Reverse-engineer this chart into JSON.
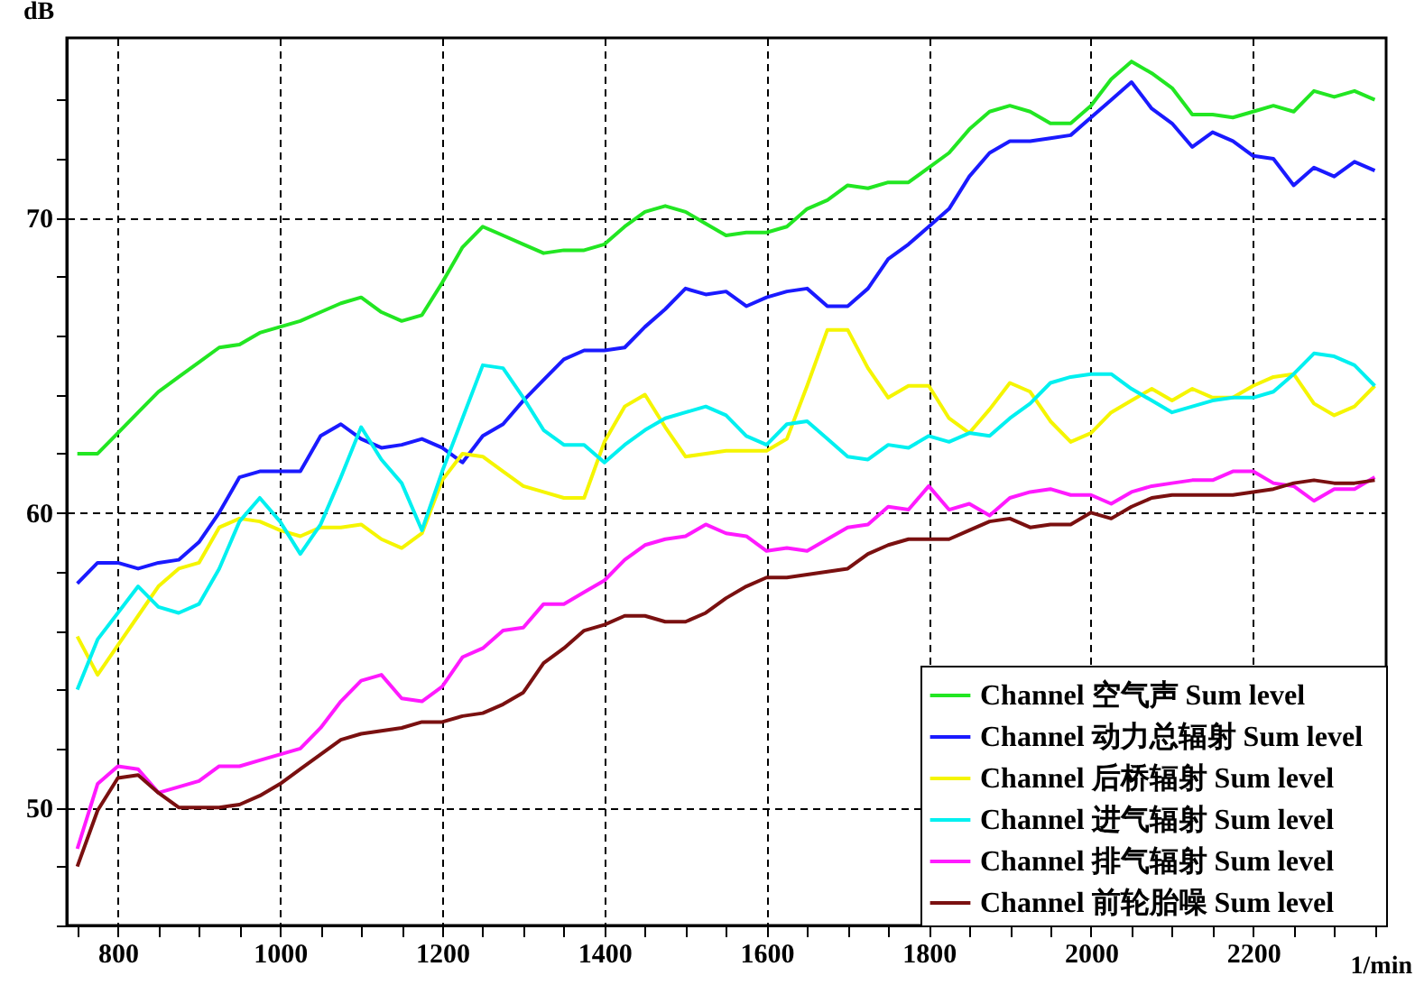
{
  "chart_data": {
    "type": "line",
    "xlabel": "1/min",
    "ylabel": "dB",
    "x": [
      750,
      775,
      800,
      825,
      850,
      875,
      900,
      925,
      950,
      975,
      1000,
      1025,
      1050,
      1075,
      1100,
      1125,
      1150,
      1175,
      1200,
      1225,
      1250,
      1275,
      1300,
      1325,
      1350,
      1375,
      1400,
      1425,
      1450,
      1475,
      1500,
      1525,
      1550,
      1575,
      1600,
      1625,
      1650,
      1675,
      1700,
      1725,
      1750,
      1775,
      1800,
      1825,
      1850,
      1875,
      1900,
      1925,
      1950,
      1975,
      2000,
      2025,
      2050,
      2075,
      2100,
      2125,
      2150,
      2175,
      2200,
      2225,
      2250,
      2275,
      2300,
      2325,
      2350
    ],
    "series": [
      {
        "name": "Channel  空气声  Sum level",
        "color": "#22e622",
        "values": [
          62.0,
          62.0,
          62.7,
          63.4,
          64.1,
          64.6,
          65.1,
          65.6,
          65.7,
          66.1,
          66.3,
          66.5,
          66.8,
          67.1,
          67.3,
          66.8,
          66.5,
          66.7,
          67.8,
          69.0,
          69.7,
          69.4,
          69.1,
          68.8,
          68.9,
          68.9,
          69.1,
          69.7,
          70.2,
          70.4,
          70.2,
          69.8,
          69.4,
          69.5,
          69.5,
          69.7,
          70.3,
          70.6,
          71.1,
          71.0,
          71.2,
          71.2,
          71.7,
          72.2,
          73.0,
          73.6,
          73.8,
          73.6,
          73.2,
          73.2,
          73.8,
          74.7,
          75.3,
          74.9,
          74.4,
          73.5,
          73.5,
          73.4,
          73.6,
          73.8,
          73.6,
          74.3,
          74.1,
          74.3,
          74.0
        ]
      },
      {
        "name": "Channel  动力总辐射  Sum level",
        "color": "#1a1aff",
        "values": [
          57.6,
          58.3,
          58.3,
          58.1,
          58.3,
          58.4,
          59.0,
          60.0,
          61.2,
          61.4,
          61.4,
          61.4,
          62.6,
          63.0,
          62.5,
          62.2,
          62.3,
          62.5,
          62.2,
          61.7,
          62.6,
          63.0,
          63.8,
          64.5,
          65.2,
          65.5,
          65.5,
          65.6,
          66.3,
          66.9,
          67.6,
          67.4,
          67.5,
          67.0,
          67.3,
          67.5,
          67.6,
          67.0,
          67.0,
          67.6,
          68.6,
          69.1,
          69.7,
          70.3,
          71.4,
          72.2,
          72.6,
          72.6,
          72.7,
          72.8,
          73.4,
          74.0,
          74.6,
          73.7,
          73.2,
          72.4,
          72.9,
          72.6,
          72.1,
          72.0,
          71.1,
          71.7,
          71.4,
          71.9,
          71.6
        ]
      },
      {
        "name": "Channel  后桥辐射  Sum level",
        "color": "#f5f500",
        "values": [
          55.8,
          54.5,
          55.5,
          56.5,
          57.5,
          58.1,
          58.3,
          59.5,
          59.8,
          59.7,
          59.4,
          59.2,
          59.5,
          59.5,
          59.6,
          59.1,
          58.8,
          59.3,
          61.1,
          62.0,
          61.9,
          61.4,
          60.9,
          60.7,
          60.5,
          60.5,
          62.4,
          63.6,
          64.0,
          62.9,
          61.9,
          62.0,
          62.1,
          62.1,
          62.1,
          62.5,
          64.3,
          66.2,
          66.2,
          64.9,
          63.9,
          64.3,
          64.3,
          63.2,
          62.7,
          63.5,
          64.4,
          64.1,
          63.1,
          62.4,
          62.7,
          63.4,
          63.8,
          64.2,
          63.8,
          64.2,
          63.9,
          63.9,
          64.3,
          64.6,
          64.7,
          63.7,
          63.3,
          63.6,
          64.3
        ]
      },
      {
        "name": "Channel  进气辐射  Sum level",
        "color": "#00f0f0",
        "values": [
          54.0,
          55.7,
          56.6,
          57.5,
          56.8,
          56.6,
          56.9,
          58.1,
          59.7,
          60.5,
          59.7,
          58.6,
          59.6,
          61.2,
          62.9,
          61.8,
          61.0,
          59.4,
          61.4,
          63.2,
          65.0,
          64.9,
          63.9,
          62.8,
          62.3,
          62.3,
          61.7,
          62.3,
          62.8,
          63.2,
          63.4,
          63.6,
          63.3,
          62.6,
          62.3,
          63.0,
          63.1,
          62.5,
          61.9,
          61.8,
          62.3,
          62.2,
          62.6,
          62.4,
          62.7,
          62.6,
          63.2,
          63.7,
          64.4,
          64.6,
          64.7,
          64.7,
          64.2,
          63.8,
          63.4,
          63.6,
          63.8,
          63.9,
          63.9,
          64.1,
          64.7,
          65.4,
          65.3,
          65.0,
          64.3
        ]
      },
      {
        "name": "Channel  排气辐射  Sum level",
        "color": "#ff1aff",
        "values": [
          48.6,
          50.8,
          51.4,
          51.3,
          50.5,
          50.7,
          50.9,
          51.4,
          51.4,
          51.6,
          51.8,
          52.0,
          52.7,
          53.6,
          54.3,
          54.5,
          53.7,
          53.6,
          54.1,
          55.1,
          55.4,
          56.0,
          56.1,
          56.9,
          56.9,
          57.3,
          57.7,
          58.4,
          58.9,
          59.1,
          59.2,
          59.6,
          59.3,
          59.2,
          58.7,
          58.8,
          58.7,
          59.1,
          59.5,
          59.6,
          60.2,
          60.1,
          60.9,
          60.1,
          60.3,
          59.9,
          60.5,
          60.7,
          60.8,
          60.6,
          60.6,
          60.3,
          60.7,
          60.9,
          61.0,
          61.1,
          61.1,
          61.4,
          61.4,
          61.0,
          60.9,
          60.4,
          60.8,
          60.8,
          61.2
        ]
      },
      {
        "name": "Channel  前轮胎噪  Sum level",
        "color": "#7a1010",
        "values": [
          48.0,
          49.9,
          51.0,
          51.1,
          50.5,
          50.0,
          50.0,
          50.0,
          50.1,
          50.4,
          50.8,
          51.3,
          51.8,
          52.3,
          52.5,
          52.6,
          52.7,
          52.9,
          52.9,
          53.1,
          53.2,
          53.5,
          53.9,
          54.9,
          55.4,
          56.0,
          56.2,
          56.5,
          56.5,
          56.3,
          56.3,
          56.6,
          57.1,
          57.5,
          57.8,
          57.8,
          57.9,
          58.0,
          58.1,
          58.6,
          58.9,
          59.1,
          59.1,
          59.1,
          59.4,
          59.7,
          59.8,
          59.5,
          59.6,
          59.6,
          60.0,
          59.8,
          60.2,
          60.5,
          60.6,
          60.6,
          60.6,
          60.6,
          60.7,
          60.8,
          61.0,
          61.1,
          61.0,
          61.0,
          61.1
        ]
      }
    ],
    "xlim": [
      737,
      2364
    ],
    "xticks": [
      {
        "value": 750,
        "label": null
      },
      800,
      {
        "value": 850,
        "label": null
      },
      {
        "value": 900,
        "label": null
      },
      {
        "value": 950,
        "label": null
      },
      1000,
      {
        "value": 1050,
        "label": null
      },
      {
        "value": 1100,
        "label": null
      },
      {
        "value": 1150,
        "label": null
      },
      1200,
      {
        "value": 1250,
        "label": null
      },
      {
        "value": 1300,
        "label": null
      },
      {
        "value": 1350,
        "label": null
      },
      1400,
      {
        "value": 1450,
        "label": null
      },
      {
        "value": 1500,
        "label": null
      },
      {
        "value": 1550,
        "label": null
      },
      1600,
      {
        "value": 1650,
        "label": null
      },
      {
        "value": 1700,
        "label": null
      },
      {
        "value": 1750,
        "label": null
      },
      1800,
      {
        "value": 1850,
        "label": null
      },
      {
        "value": 1900,
        "label": null
      },
      {
        "value": 1950,
        "label": null
      },
      2000,
      {
        "value": 2050,
        "label": null
      },
      {
        "value": 2100,
        "label": null
      },
      {
        "value": 2150,
        "label": null
      },
      2200,
      {
        "value": 2250,
        "label": null
      },
      {
        "value": 2300,
        "label": null
      },
      {
        "value": 2350,
        "label": null
      }
    ],
    "ylim": [
      46,
      76.1
    ],
    "yticks": [
      {
        "value": 46,
        "label": null
      },
      {
        "value": 48,
        "label": null
      },
      50,
      {
        "value": 52,
        "label": null
      },
      {
        "value": 54,
        "label": null
      },
      {
        "value": 56,
        "label": null
      },
      {
        "value": 58,
        "label": null
      },
      60,
      {
        "value": 62,
        "label": null
      },
      {
        "value": 64,
        "label": null
      },
      {
        "value": 66,
        "label": null
      },
      {
        "value": 68,
        "label": null
      },
      70,
      {
        "value": 72,
        "label": null
      },
      {
        "value": 74,
        "label": null
      }
    ],
    "grid": true,
    "legend": "bottom right",
    "line_style": "solid"
  }
}
